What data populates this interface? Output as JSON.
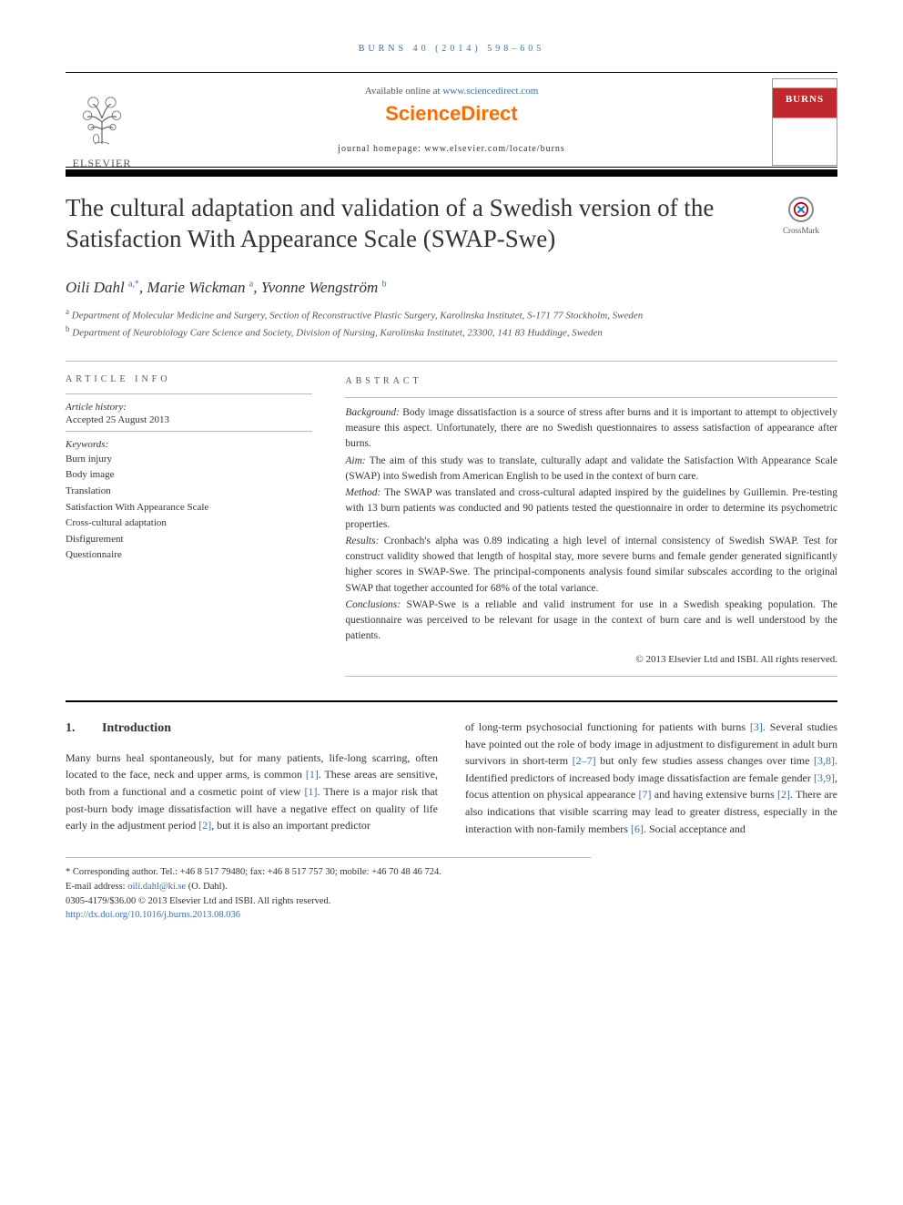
{
  "journal_ref": "BURNS 40 (2014) 598–605",
  "header": {
    "available_prefix": "Available online at ",
    "available_url": "www.sciencedirect.com",
    "brand": "ScienceDirect",
    "homepage_label": "journal homepage: www.elsevier.com/locate/burns",
    "publisher": "ELSEVIER",
    "journal_cover_title": "BURNS",
    "crossmark": "CrossMark"
  },
  "title": "The cultural adaptation and validation of a Swedish version of the Satisfaction With Appearance Scale (SWAP-Swe)",
  "authors_html": "Oili Dahl <sup>a,*</sup>, Marie Wickman <sup>a</sup>, Yvonne Wengström <sup>b</sup>",
  "affiliations": {
    "a": "Department of Molecular Medicine and Surgery, Section of Reconstructive Plastic Surgery, Karolinska Institutet, S-171 77 Stockholm, Sweden",
    "b": "Department of Neurobiology Care Science and Society, Division of Nursing, Karolinska Institutet, 23300, 141 83 Huddinge, Sweden"
  },
  "article_info": {
    "head": "ARTICLE INFO",
    "history_label": "Article history:",
    "history_value": "Accepted 25 August 2013",
    "keywords_label": "Keywords:",
    "keywords": [
      "Burn injury",
      "Body image",
      "Translation",
      "Satisfaction With Appearance Scale",
      "Cross-cultural adaptation",
      "Disfigurement",
      "Questionnaire"
    ]
  },
  "abstract": {
    "head": "ABSTRACT",
    "background_label": "Background:",
    "background": "Body image dissatisfaction is a source of stress after burns and it is important to attempt to objectively measure this aspect. Unfortunately, there are no Swedish questionnaires to assess satisfaction of appearance after burns.",
    "aim_label": "Aim:",
    "aim": "The aim of this study was to translate, culturally adapt and validate the Satisfaction With Appearance Scale (SWAP) into Swedish from American English to be used in the context of burn care.",
    "method_label": "Method:",
    "method": "The SWAP was translated and cross-cultural adapted inspired by the guidelines by Guillemin. Pre-testing with 13 burn patients was conducted and 90 patients tested the questionnaire in order to determine its psychometric properties.",
    "results_label": "Results:",
    "results": "Cronbach's alpha was 0.89 indicating a high level of internal consistency of Swedish SWAP. Test for construct validity showed that length of hospital stay, more severe burns and female gender generated significantly higher scores in SWAP-Swe. The principal-components analysis found similar subscales according to the original SWAP that together accounted for 68% of the total variance.",
    "conclusions_label": "Conclusions:",
    "conclusions": "SWAP-Swe is a reliable and valid instrument for use in a Swedish speaking population. The questionnaire was perceived to be relevant for usage in the context of burn care and is well understood by the patients.",
    "copyright": "© 2013 Elsevier Ltd and ISBI. All rights reserved."
  },
  "intro": {
    "heading_num": "1.",
    "heading": "Introduction",
    "col1": "Many burns heal spontaneously, but for many patients, life-long scarring, often located to the face, neck and upper arms, is common [1]. These areas are sensitive, both from a functional and a cosmetic point of view [1]. There is a major risk that post-burn body image dissatisfaction will have a negative effect on quality of life early in the adjustment period [2], but it is also an important predictor",
    "col2": "of long-term psychosocial functioning for patients with burns [3]. Several studies have pointed out the role of body image in adjustment to disfigurement in adult burn survivors in short-term [2–7] but only few studies assess changes over time [3,8]. Identified predictors of increased body image dissatisfaction are female gender [3,9], focus attention on physical appearance [7] and having extensive burns [2]. There are also indications that visible scarring may lead to greater distress, especially in the interaction with non-family members [6]. Social acceptance and"
  },
  "footnotes": {
    "corresponding": "* Corresponding author. Tel.: +46 8 517 79480; fax: +46 8 517 757 30; mobile: +46 70 48 46 724.",
    "email_label": "E-mail address: ",
    "email": "oili.dahl@ki.se",
    "email_suffix": " (O. Dahl).",
    "issn_line": "0305-4179/$36.00 © 2013 Elsevier Ltd and ISBI. All rights reserved.",
    "doi": "http://dx.doi.org/10.1016/j.burns.2013.08.036"
  },
  "colors": {
    "link": "#3b6fb6",
    "brand_orange": "#ff6c00",
    "cover_red": "#c1282d"
  }
}
